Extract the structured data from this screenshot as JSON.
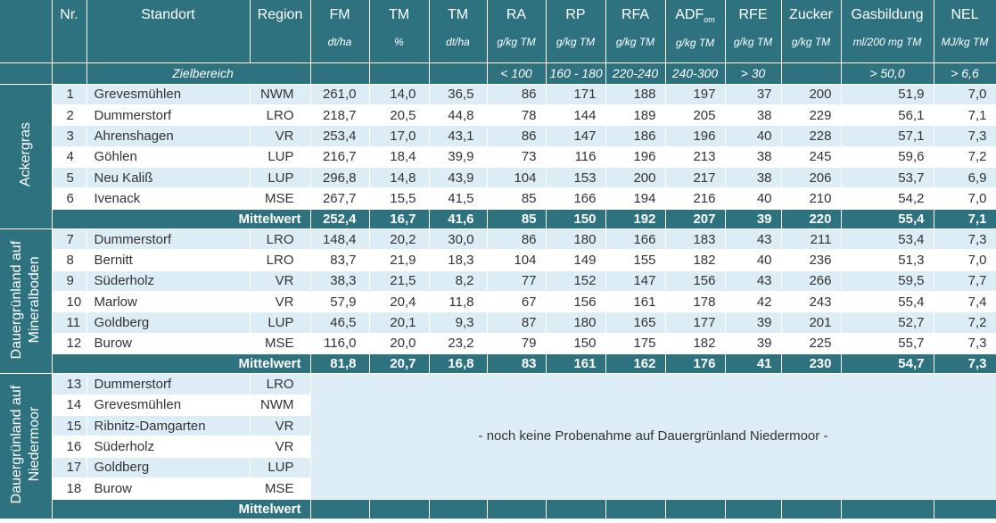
{
  "headers": [
    {
      "label": "Nr.",
      "unit": ""
    },
    {
      "label": "Standort",
      "unit": ""
    },
    {
      "label": "Region",
      "unit": ""
    },
    {
      "label": "FM",
      "unit": "dt/ha"
    },
    {
      "label": "TM",
      "unit": "%"
    },
    {
      "label": "TM",
      "unit": "dt/ha"
    },
    {
      "label": "RA",
      "unit": "g/kg TM"
    },
    {
      "label": "RP",
      "unit": "g/kg TM"
    },
    {
      "label": "RFA",
      "unit": "g/kg TM"
    },
    {
      "label": "ADF",
      "sub": "om",
      "unit": "g/kg TM"
    },
    {
      "label": "RFE",
      "unit": "g/kg TM"
    },
    {
      "label": "Zucker",
      "unit": "g/kg TM"
    },
    {
      "label": "Gasbildung",
      "unit": "ml/200 mg TM"
    },
    {
      "label": "NEL",
      "unit": "MJ/kg TM"
    }
  ],
  "zielbereich": {
    "label": "Zielbereich",
    "values": [
      "",
      "",
      "",
      "< 100",
      "160 - 180",
      "220-240",
      "240-300",
      "> 30",
      "",
      "> 50,0",
      "> 6,6"
    ]
  },
  "mean_label": "Mittelwert",
  "groups": [
    {
      "name": "Ackergras",
      "rows": [
        [
          "1",
          "Grevesmühlen",
          "NWM",
          "261,0",
          "14,0",
          "36,5",
          "86",
          "171",
          "188",
          "197",
          "37",
          "200",
          "51,9",
          "7,0"
        ],
        [
          "2",
          "Dummerstorf",
          "LRO",
          "218,7",
          "20,5",
          "44,8",
          "78",
          "144",
          "189",
          "205",
          "38",
          "229",
          "56,1",
          "7,1"
        ],
        [
          "3",
          "Ahrenshagen",
          "VR",
          "253,4",
          "17,0",
          "43,1",
          "86",
          "147",
          "186",
          "196",
          "40",
          "228",
          "57,1",
          "7,3"
        ],
        [
          "4",
          "Göhlen",
          "LUP",
          "216,7",
          "18,4",
          "39,9",
          "73",
          "116",
          "196",
          "213",
          "38",
          "245",
          "59,6",
          "7,2"
        ],
        [
          "5",
          "Neu Kaliß",
          "LUP",
          "296,8",
          "14,8",
          "43,9",
          "104",
          "153",
          "200",
          "217",
          "38",
          "206",
          "53,7",
          "6,9"
        ],
        [
          "6",
          "Ivenack",
          "MSE",
          "267,7",
          "15,5",
          "41,5",
          "85",
          "166",
          "194",
          "216",
          "40",
          "210",
          "54,2",
          "7,0"
        ]
      ],
      "mean": [
        "252,4",
        "16,7",
        "41,6",
        "85",
        "150",
        "192",
        "207",
        "39",
        "220",
        "55,4",
        "7,1"
      ]
    },
    {
      "name": "Dauergrünland auf Mineralboden",
      "rows": [
        [
          "7",
          "Dummerstorf",
          "LRO",
          "148,4",
          "20,2",
          "30,0",
          "86",
          "180",
          "166",
          "183",
          "43",
          "211",
          "53,4",
          "7,3"
        ],
        [
          "8",
          "Bernitt",
          "LRO",
          "83,7",
          "21,9",
          "18,3",
          "104",
          "149",
          "155",
          "182",
          "40",
          "236",
          "51,3",
          "7,0"
        ],
        [
          "9",
          "Süderholz",
          "VR",
          "38,3",
          "21,5",
          "8,2",
          "77",
          "152",
          "147",
          "156",
          "43",
          "266",
          "59,5",
          "7,7"
        ],
        [
          "10",
          "Marlow",
          "VR",
          "57,9",
          "20,4",
          "11,8",
          "67",
          "156",
          "161",
          "178",
          "42",
          "243",
          "55,4",
          "7,4"
        ],
        [
          "11",
          "Goldberg",
          "LUP",
          "46,5",
          "20,1",
          "9,3",
          "87",
          "180",
          "165",
          "177",
          "39",
          "201",
          "52,7",
          "7,2"
        ],
        [
          "12",
          "Burow",
          "MSE",
          "116,0",
          "20,0",
          "23,2",
          "79",
          "150",
          "175",
          "182",
          "39",
          "225",
          "55,7",
          "7,3"
        ]
      ],
      "mean": [
        "81,8",
        "20,7",
        "16,8",
        "83",
        "161",
        "162",
        "176",
        "41",
        "230",
        "54,7",
        "7,3"
      ]
    },
    {
      "name": "Dauergrünland auf Niedermoor",
      "rows": [
        [
          "13",
          "Dummerstorf",
          "LRO"
        ],
        [
          "14",
          "Grevesmühlen",
          "NWM"
        ],
        [
          "15",
          "Ribnitz-Damgarten",
          "VR"
        ],
        [
          "16",
          "Süderholz",
          "VR"
        ],
        [
          "17",
          "Goldberg",
          "LUP"
        ],
        [
          "18",
          "Burow",
          "MSE"
        ]
      ],
      "empty_message": "- noch keine Probenahme auf Dauergrünland Niedermoor -",
      "mean": []
    }
  ]
}
